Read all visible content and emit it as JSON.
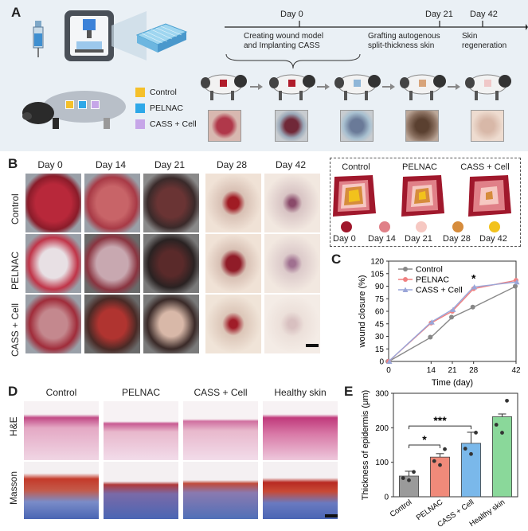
{
  "panels": {
    "a": "A",
    "b": "B",
    "c": "C",
    "d": "D",
    "e": "E"
  },
  "timeline": {
    "days": [
      "Day 0",
      "Day 21",
      "Day 42"
    ],
    "steps": [
      "Creating wound model\nand Implanting CASS",
      "Grafting autogenous\nsplit-thickness skin",
      "Skin\nregeneration"
    ]
  },
  "legend": [
    {
      "label": "Control",
      "color": "#f5c02a"
    },
    {
      "label": "PELNAC",
      "color": "#2ea8e8"
    },
    {
      "label": "CASS + Cell",
      "color": "#c6a6e8"
    }
  ],
  "panel_b": {
    "days": [
      "Day 0",
      "Day 14",
      "Day 21",
      "Day 28",
      "Day 42"
    ],
    "groups": [
      "Control",
      "PELNAC",
      "CASS + Cell"
    ],
    "schematic_titles": [
      "Control",
      "PELNAC",
      "CASS + Cell"
    ],
    "schematic_days": [
      {
        "label": "Day 0",
        "color": "#a0182c"
      },
      {
        "label": "Day 14",
        "color": "#e08088"
      },
      {
        "label": "Day 21",
        "color": "#f6c8c2"
      },
      {
        "label": "Day 28",
        "color": "#d68c3c"
      },
      {
        "label": "Day 42",
        "color": "#f2c21c"
      }
    ]
  },
  "panel_d": {
    "columns": [
      "Control",
      "PELNAC",
      "CASS + Cell",
      "Healthy skin"
    ],
    "rows": [
      "H&E",
      "Masson"
    ]
  },
  "chart_data": [
    {
      "type": "line",
      "xlabel": "Time (day)",
      "ylabel": "wound closure (%)",
      "x": [
        0,
        14,
        21,
        28,
        42
      ],
      "xlim": [
        0,
        42
      ],
      "ylim": [
        0,
        120
      ],
      "yticks": [
        0,
        15,
        30,
        45,
        60,
        75,
        90,
        105,
        120
      ],
      "legend_position": "top-left",
      "annotation": "*",
      "series": [
        {
          "name": "Control",
          "color": "#888888",
          "values": [
            0,
            29,
            53,
            65,
            90
          ]
        },
        {
          "name": "PELNAC",
          "color": "#f08080",
          "values": [
            0,
            46,
            60,
            87,
            97
          ]
        },
        {
          "name": "CASS + Cell",
          "color": "#9aa6d8",
          "values": [
            0,
            47,
            62,
            89,
            95
          ]
        }
      ]
    },
    {
      "type": "bar",
      "ylabel": "Thickness of epidermis (μm)",
      "categories": [
        "Control",
        "PELNAC",
        "CASS + Cell",
        "Healthy skin"
      ],
      "values": [
        60,
        115,
        155,
        232
      ],
      "errors": [
        14,
        10,
        32,
        8
      ],
      "colors": [
        "#9a9a9a",
        "#f08a7a",
        "#7ab8ea",
        "#8ad89a"
      ],
      "ylim": [
        0,
        300
      ],
      "yticks": [
        0,
        100,
        200,
        300
      ],
      "annotations": [
        "*",
        "***"
      ]
    }
  ]
}
